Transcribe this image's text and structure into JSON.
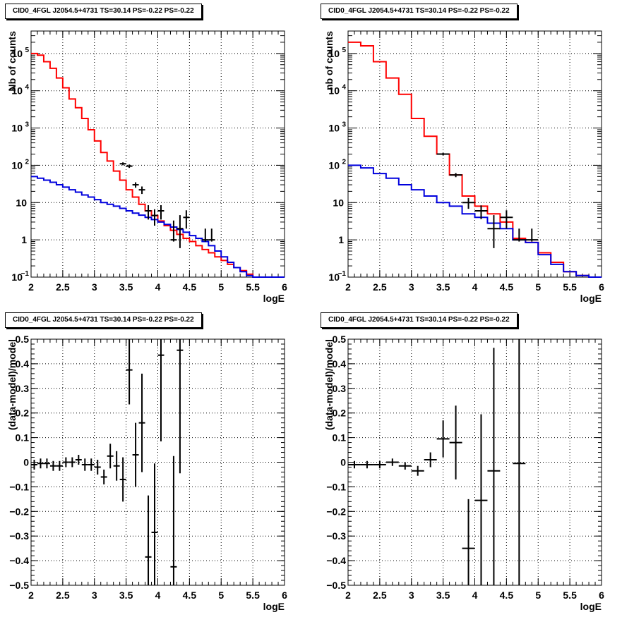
{
  "chart_data": [
    {
      "type": "line",
      "panel": "top-left",
      "title": "CID0_4FGL J2054.5+4731 TS=30.14 PS=-0.22 PS=-0.22",
      "xlabel": "logE",
      "ylabel": "Nb of counts",
      "xlim": [
        2,
        6
      ],
      "ylim": [
        0.1,
        400000
      ],
      "yscale": "log",
      "grid": true,
      "x_ticks": [
        "2",
        "2.5",
        "3",
        "3.5",
        "4",
        "4.5",
        "5",
        "5.5",
        "6"
      ],
      "y_ticks": [
        {
          "value": 0.1,
          "base": "10",
          "exp": "−1"
        },
        {
          "value": 1,
          "base": "1",
          "exp": ""
        },
        {
          "value": 10,
          "base": "10",
          "exp": ""
        },
        {
          "value": 100,
          "base": "10",
          "exp": "2"
        },
        {
          "value": 1000,
          "base": "10",
          "exp": "3"
        },
        {
          "value": 10000,
          "base": "10",
          "exp": "4"
        },
        {
          "value": 100000,
          "base": "10",
          "exp": "5"
        }
      ],
      "bin_width": 0.1,
      "series": [
        {
          "role": "model-total",
          "color": "#ff0000",
          "step": true,
          "x": [
            2.05,
            2.15,
            2.25,
            2.35,
            2.45,
            2.55,
            2.65,
            2.75,
            2.85,
            2.95,
            3.05,
            3.15,
            3.25,
            3.35,
            3.45,
            3.55,
            3.65,
            3.75,
            3.85,
            3.95,
            4.05,
            4.15,
            4.25,
            4.35,
            4.45,
            4.55,
            4.65,
            4.75,
            4.85,
            4.95,
            5.05,
            5.15,
            5.25,
            5.35,
            5.45,
            5.55,
            5.65,
            5.75,
            5.85,
            5.95
          ],
          "values": [
            100000,
            90000,
            60000,
            40000,
            22000,
            12000,
            6000,
            3500,
            1800,
            900,
            450,
            220,
            130,
            70,
            40,
            22,
            14,
            9,
            6,
            4.5,
            3.2,
            2.4,
            1.8,
            1.4,
            1.1,
            0.9,
            0.7,
            0.55,
            0.45,
            0.35,
            0.28,
            0.22,
            0.18,
            0.15,
            0.12,
            0.1,
            0.1,
            0.1,
            0.1,
            0.1
          ]
        },
        {
          "role": "background",
          "color": "#0000dd",
          "step": true,
          "x": [
            2.05,
            2.15,
            2.25,
            2.35,
            2.45,
            2.55,
            2.65,
            2.75,
            2.85,
            2.95,
            3.05,
            3.15,
            3.25,
            3.35,
            3.45,
            3.55,
            3.65,
            3.75,
            3.85,
            3.95,
            4.05,
            4.15,
            4.25,
            4.35,
            4.45,
            4.55,
            4.65,
            4.75,
            4.85,
            4.95,
            5.05,
            5.15,
            5.25,
            5.35,
            5.45,
            5.55,
            5.65,
            5.75,
            5.85,
            5.95
          ],
          "values": [
            50,
            45,
            40,
            35,
            30,
            26,
            22,
            19,
            16,
            14,
            12,
            10,
            9,
            8,
            7,
            6,
            5.2,
            4.6,
            4,
            3.5,
            3,
            2.6,
            2.2,
            1.9,
            1.6,
            1.3,
            1.1,
            0.9,
            0.7,
            0.5,
            0.35,
            0.25,
            0.18,
            0.14,
            0.11,
            0.1,
            0.1,
            0.1,
            0.1,
            0.1
          ]
        },
        {
          "role": "data",
          "color": "#000000",
          "points": true,
          "x": [
            3.45,
            3.55,
            3.65,
            3.75,
            3.85,
            3.95,
            4.05,
            4.25,
            4.35,
            4.45,
            4.75,
            4.85
          ],
          "values": [
            110,
            95,
            30,
            22,
            6,
            4.5,
            6,
            1,
            2,
            4,
            1,
            1
          ],
          "err_low": [
            10,
            10,
            5,
            5,
            2.5,
            2.1,
            2.5,
            0.1,
            1.4,
            2,
            0.1,
            0.1
          ],
          "err_high": [
            10,
            10,
            5,
            5,
            2.5,
            2.1,
            2.5,
            2.3,
            2.6,
            2.2,
            1,
            1
          ]
        }
      ]
    },
    {
      "type": "line",
      "panel": "top-right",
      "title": "CID0_4FGL J2054.5+4731 TS=30.14 PS=-0.22 PS=-0.22",
      "xlabel": "logE",
      "ylabel": "nb of counts",
      "xlim": [
        2,
        6
      ],
      "ylim": [
        0.1,
        400000
      ],
      "yscale": "log",
      "grid": true,
      "x_ticks": [
        "2",
        "2.5",
        "3",
        "3.5",
        "4",
        "4.5",
        "5",
        "5.5",
        "6"
      ],
      "y_ticks": [
        {
          "value": 0.1,
          "base": "10",
          "exp": "−1"
        },
        {
          "value": 1,
          "base": "1",
          "exp": ""
        },
        {
          "value": 10,
          "base": "10",
          "exp": ""
        },
        {
          "value": 100,
          "base": "10",
          "exp": "2"
        },
        {
          "value": 1000,
          "base": "10",
          "exp": "3"
        },
        {
          "value": 10000,
          "base": "10",
          "exp": "4"
        },
        {
          "value": 100000,
          "base": "10",
          "exp": "5"
        }
      ],
      "bin_width": 0.2,
      "series": [
        {
          "role": "model-total",
          "color": "#ff0000",
          "step": true,
          "x": [
            2.1,
            2.3,
            2.5,
            2.7,
            2.9,
            3.1,
            3.3,
            3.5,
            3.7,
            3.9,
            4.1,
            4.3,
            4.5,
            4.7,
            4.9,
            5.1,
            5.3,
            5.5,
            5.7,
            5.9
          ],
          "values": [
            200000,
            160000,
            60000,
            22000,
            8000,
            1800,
            600,
            200,
            55,
            15,
            8,
            5,
            3,
            1.1,
            0.85,
            0.45,
            0.25,
            0.14,
            0.11,
            0.1
          ]
        },
        {
          "role": "background",
          "color": "#0000dd",
          "step": true,
          "x": [
            2.1,
            2.3,
            2.5,
            2.7,
            2.9,
            3.1,
            3.3,
            3.5,
            3.7,
            3.9,
            4.1,
            4.3,
            4.5,
            4.7,
            4.9,
            5.1,
            5.3,
            5.5,
            5.7,
            5.9
          ],
          "values": [
            100,
            85,
            60,
            45,
            30,
            22,
            15,
            10,
            8,
            5,
            4,
            2.8,
            2,
            1,
            0.85,
            0.4,
            0.22,
            0.14,
            0.11,
            0.1
          ]
        },
        {
          "role": "data",
          "color": "#000000",
          "points": true,
          "x": [
            3.5,
            3.7,
            3.9,
            4.1,
            4.3,
            4.5,
            4.7,
            4.9
          ],
          "values": [
            200,
            55,
            10,
            6,
            2,
            4,
            1,
            1
          ],
          "err_low": [
            14,
            7,
            3.2,
            2.4,
            1.4,
            2,
            0.1,
            0.1
          ],
          "err_high": [
            14,
            7,
            3.2,
            2.4,
            2.6,
            2.2,
            1,
            1
          ]
        }
      ]
    },
    {
      "type": "scatter",
      "panel": "bottom-left",
      "title": "CID0_4FGL J2054.5+4731 TS=30.14 PS=-0.22 PS=-0.22",
      "xlabel": "logE",
      "ylabel": "(data-model)/model",
      "xlim": [
        2,
        6
      ],
      "ylim": [
        -0.5,
        0.5
      ],
      "yscale": "linear",
      "grid": true,
      "x_ticks": [
        "2",
        "2.5",
        "3",
        "3.5",
        "4",
        "4.5",
        "5",
        "5.5",
        "6"
      ],
      "y_ticks": [
        "−0.5",
        "−0.4",
        "−0.3",
        "−0.2",
        "−0.1",
        "0",
        "0.1",
        "0.2",
        "0.3",
        "0.4",
        "0.5"
      ],
      "bin_width": 0.1,
      "series": [
        {
          "role": "residuals",
          "color": "#000000",
          "points": true,
          "x": [
            2.05,
            2.15,
            2.25,
            2.35,
            2.45,
            2.55,
            2.65,
            2.75,
            2.85,
            2.95,
            3.05,
            3.15,
            3.25,
            3.35,
            3.45,
            3.55,
            3.65,
            3.75,
            3.85,
            3.95,
            4.05,
            4.25,
            4.35
          ],
          "values": [
            -0.01,
            -0.005,
            -0.005,
            -0.015,
            -0.015,
            0,
            0,
            0.01,
            -0.01,
            -0.01,
            -0.02,
            -0.06,
            0.025,
            -0.015,
            -0.07,
            0.375,
            0.03,
            0.16,
            -0.385,
            -0.285,
            0.435,
            -0.425,
            0.455
          ],
          "err": [
            0.02,
            0.02,
            0.02,
            0.02,
            0.02,
            0.02,
            0.02,
            0.02,
            0.025,
            0.025,
            0.03,
            0.03,
            0.05,
            0.06,
            0.09,
            0.14,
            0.13,
            0.2,
            0.25,
            0.28,
            0.35,
            0.45,
            0.5
          ]
        }
      ]
    },
    {
      "type": "scatter",
      "panel": "bottom-right",
      "title": "CID0_4FGL J2054.5+4731 TS=30.14 PS=-0.22 PS=-0.22",
      "xlabel": "logE",
      "ylabel": "(data-model)/model",
      "xlim": [
        2,
        6
      ],
      "ylim": [
        -0.5,
        0.5
      ],
      "yscale": "linear",
      "grid": true,
      "x_ticks": [
        "2",
        "2.5",
        "3",
        "3.5",
        "4",
        "4.5",
        "5",
        "5.5",
        "6"
      ],
      "y_ticks": [
        "−0.5",
        "−0.4",
        "−0.3",
        "−0.2",
        "−0.1",
        "0",
        "0.1",
        "0.2",
        "0.3",
        "0.4",
        "0.5"
      ],
      "bin_width": 0.2,
      "series": [
        {
          "role": "residuals",
          "color": "#000000",
          "points": true,
          "x": [
            2.1,
            2.3,
            2.5,
            2.7,
            2.9,
            3.1,
            3.3,
            3.5,
            3.7,
            3.9,
            4.1,
            4.3,
            4.7
          ],
          "values": [
            -0.01,
            -0.01,
            -0.01,
            0,
            -0.015,
            -0.035,
            0.01,
            0.095,
            0.08,
            -0.35,
            -0.155,
            -0.035,
            -0.005
          ],
          "err": [
            0.015,
            0.015,
            0.015,
            0.015,
            0.015,
            0.02,
            0.03,
            0.075,
            0.15,
            0.2,
            0.35,
            0.5,
            0.6
          ]
        }
      ]
    }
  ]
}
